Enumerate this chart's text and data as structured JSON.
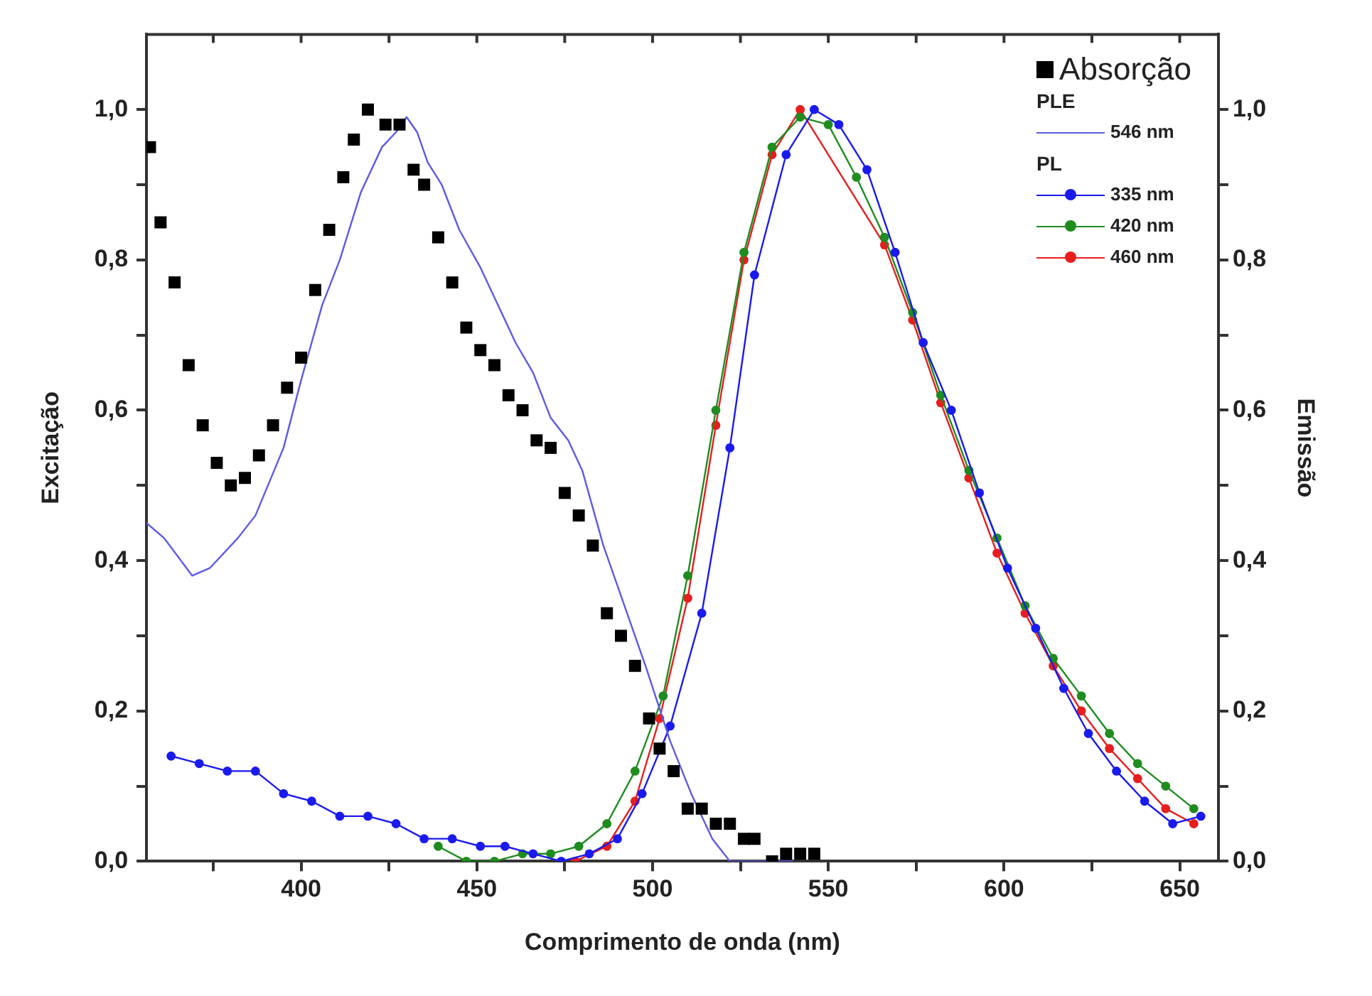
{
  "chart_data": {
    "type": "line",
    "xlabel": "Comprimento de onda (nm)",
    "ylabel": "Excitação",
    "y2label": "Emissão",
    "xlim": [
      356,
      661
    ],
    "xticks": [
      {
        "value": 375,
        "label": null
      },
      400,
      {
        "value": 425,
        "label": null
      },
      450,
      {
        "value": 475,
        "label": null
      },
      500,
      {
        "value": 525,
        "label": null
      },
      550,
      {
        "value": 575,
        "label": null
      },
      600,
      {
        "value": 625,
        "label": null
      },
      650
    ],
    "ylim": [
      0,
      1.1
    ],
    "yticks": [
      {
        "value": 0,
        "label": "0,0"
      },
      {
        "value": 0.1,
        "label": null
      },
      {
        "value": 0.2,
        "label": "0,2"
      },
      {
        "value": 0.3,
        "label": null
      },
      {
        "value": 0.4,
        "label": "0,4"
      },
      {
        "value": 0.5,
        "label": null
      },
      {
        "value": 0.6,
        "label": "0,6"
      },
      {
        "value": 0.7,
        "label": null
      },
      {
        "value": 0.8,
        "label": "0,8"
      },
      {
        "value": 0.9,
        "label": null
      },
      {
        "value": 1.0,
        "label": "1,0"
      }
    ],
    "y2lim": [
      0,
      1.1
    ],
    "y2ticks": [
      {
        "value": 0,
        "label": "0,0"
      },
      {
        "value": 0.1,
        "label": null
      },
      {
        "value": 0.2,
        "label": "0,2"
      },
      {
        "value": 0.3,
        "label": null
      },
      {
        "value": 0.4,
        "label": "0,4"
      },
      {
        "value": 0.5,
        "label": null
      },
      {
        "value": 0.6,
        "label": "0,6"
      },
      {
        "value": 0.7,
        "label": null
      },
      {
        "value": 0.8,
        "label": "0,8"
      },
      {
        "value": 0.9,
        "label": null
      },
      {
        "value": 1.0,
        "label": "1,0"
      }
    ],
    "grid": false,
    "legend": "top right",
    "annotations": [
      "PLE",
      "PL"
    ],
    "series": [
      {
        "name": "Absorção",
        "type": "scatter",
        "marker": "square",
        "color": "#000000",
        "x": [
          357,
          360,
          364,
          368,
          372,
          376,
          380,
          384,
          388,
          392,
          396,
          400,
          404,
          408,
          412,
          415,
          419,
          424,
          428,
          432,
          435,
          439,
          443,
          447,
          451,
          455,
          459,
          463,
          467,
          471,
          475,
          479,
          483,
          487,
          491,
          495,
          499,
          502,
          506,
          510,
          514,
          518,
          522,
          526,
          529,
          534,
          538,
          542,
          546
        ],
        "values": [
          0.95,
          0.85,
          0.77,
          0.66,
          0.58,
          0.53,
          0.5,
          0.51,
          0.54,
          0.58,
          0.63,
          0.67,
          0.76,
          0.84,
          0.91,
          0.96,
          1.0,
          0.98,
          0.98,
          0.92,
          0.9,
          0.83,
          0.77,
          0.71,
          0.68,
          0.66,
          0.62,
          0.6,
          0.56,
          0.55,
          0.49,
          0.46,
          0.42,
          0.33,
          0.3,
          0.26,
          0.19,
          0.15,
          0.12,
          0.07,
          0.07,
          0.05,
          0.05,
          0.03,
          0.03,
          0.0,
          0.01,
          0.01,
          0.01
        ]
      },
      {
        "name": "546 nm",
        "marker": "none",
        "color": "#5a5ae6",
        "x": [
          356,
          361,
          369,
          374,
          382,
          387,
          395,
          400,
          406,
          411,
          417,
          423,
          427,
          430,
          433,
          436,
          440,
          445,
          451,
          456,
          461,
          466,
          471,
          476,
          480,
          486,
          492,
          498,
          505,
          511,
          517,
          522,
          540
        ],
        "values": [
          0.45,
          0.43,
          0.38,
          0.39,
          0.43,
          0.46,
          0.55,
          0.64,
          0.74,
          0.8,
          0.89,
          0.95,
          0.97,
          0.99,
          0.97,
          0.93,
          0.9,
          0.84,
          0.79,
          0.74,
          0.69,
          0.65,
          0.59,
          0.56,
          0.52,
          0.42,
          0.34,
          0.26,
          0.16,
          0.09,
          0.03,
          0.0,
          0.0
        ]
      },
      {
        "name": "335 nm",
        "marker": "circle",
        "axis": "y2",
        "color": "#1a1aee",
        "x": [
          363,
          371,
          379,
          387,
          395,
          403,
          411,
          419,
          427,
          435,
          443,
          451,
          458,
          466,
          474,
          482,
          490,
          497,
          505,
          514,
          522,
          529,
          538,
          546,
          553,
          561,
          569,
          577,
          585,
          593,
          601,
          609,
          617,
          624,
          632,
          640,
          648,
          656
        ],
        "values": [
          0.14,
          0.13,
          0.12,
          0.12,
          0.09,
          0.08,
          0.06,
          0.06,
          0.05,
          0.03,
          0.03,
          0.02,
          0.02,
          0.01,
          0.0,
          0.01,
          0.03,
          0.09,
          0.18,
          0.33,
          0.55,
          0.78,
          0.94,
          1.0,
          0.98,
          0.92,
          0.81,
          0.69,
          0.6,
          0.49,
          0.39,
          0.31,
          0.23,
          0.17,
          0.12,
          0.08,
          0.05,
          0.06
        ]
      },
      {
        "name": "420 nm",
        "marker": "circle",
        "axis": "y2",
        "color": "#1e8c1e",
        "x": [
          439,
          447,
          455,
          463,
          471,
          479,
          487,
          495,
          503,
          510,
          518,
          526,
          534,
          542,
          550,
          558,
          566,
          574,
          582,
          590,
          598,
          606,
          614,
          622,
          630,
          638,
          646,
          654
        ],
        "values": [
          0.02,
          0.0,
          0.0,
          0.01,
          0.01,
          0.02,
          0.05,
          0.12,
          0.22,
          0.38,
          0.6,
          0.81,
          0.95,
          0.99,
          0.98,
          0.91,
          0.83,
          0.73,
          0.62,
          0.52,
          0.43,
          0.34,
          0.27,
          0.22,
          0.17,
          0.13,
          0.1,
          0.07
        ]
      },
      {
        "name": "460 nm",
        "marker": "circle",
        "axis": "y2",
        "color": "#e61e1e",
        "x": [
          478,
          487,
          495,
          502,
          510,
          518,
          526,
          534,
          542,
          550,
          558,
          566,
          574,
          582,
          590,
          598,
          606,
          614,
          622,
          630,
          638,
          646,
          654
        ],
        "values": [
          0.0,
          0.02,
          0.08,
          0.19,
          0.35,
          0.58,
          0.8,
          0.94,
          1.0,
          null,
          null,
          0.82,
          0.72,
          0.61,
          0.51,
          0.41,
          0.33,
          0.26,
          0.2,
          0.15,
          0.11,
          0.07,
          0.05
        ]
      }
    ]
  }
}
